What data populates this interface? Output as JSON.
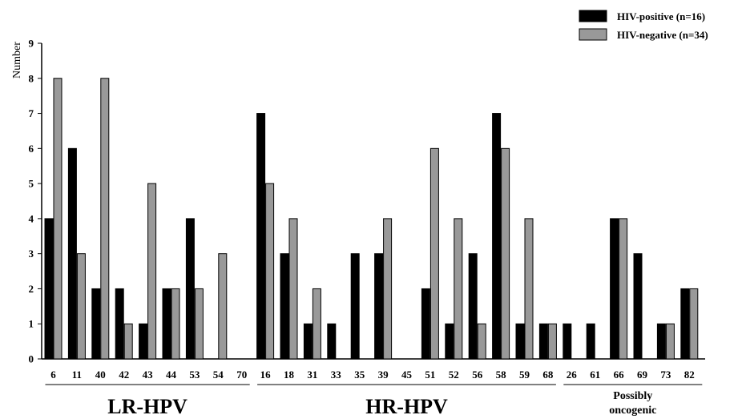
{
  "chart_data": {
    "type": "bar",
    "ylabel": "Number",
    "ylim": [
      0,
      9
    ],
    "yticks": [
      "0",
      "1",
      "2",
      "3",
      "4",
      "5",
      "6",
      "7",
      "8",
      "9"
    ],
    "categories": [
      "6",
      "11",
      "40",
      "42",
      "43",
      "44",
      "53",
      "54",
      "70",
      "16",
      "18",
      "31",
      "33",
      "35",
      "39",
      "45",
      "51",
      "52",
      "56",
      "58",
      "59",
      "68",
      "26",
      "61",
      "66",
      "69",
      "73",
      "82"
    ],
    "series": [
      {
        "name": "HIV-positive (n=16)",
        "color": "#000000",
        "values": [
          4,
          6,
          2,
          2,
          1,
          2,
          4,
          0,
          0,
          7,
          3,
          1,
          1,
          3,
          3,
          0,
          2,
          1,
          3,
          7,
          1,
          1,
          1,
          1,
          4,
          3,
          1,
          2
        ]
      },
      {
        "name": "HIV-negative (n=34)",
        "color": "#999999",
        "values": [
          8,
          3,
          8,
          1,
          5,
          2,
          2,
          3,
          0,
          5,
          4,
          2,
          0,
          0,
          4,
          0,
          6,
          4,
          1,
          6,
          4,
          1,
          0,
          0,
          4,
          0,
          1,
          2
        ]
      }
    ],
    "groups": [
      {
        "label_lines": [
          "LR-HPV"
        ],
        "from": 0,
        "to": 8
      },
      {
        "label_lines": [
          "HR-HPV"
        ],
        "from": 9,
        "to": 21
      },
      {
        "label_lines": [
          "Possibly",
          "oncogenic"
        ],
        "from": 22,
        "to": 27
      }
    ],
    "legend_position": "top-right",
    "grid": false
  }
}
